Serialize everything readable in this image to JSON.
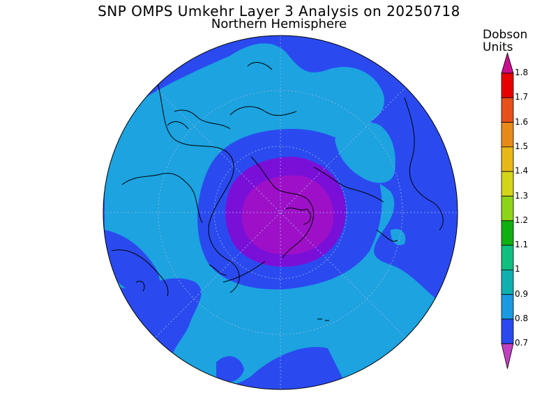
{
  "title": "SNP OMPS Umkehr Layer 3 Analysis on 20250718",
  "subtitle": "Northern Hemisphere",
  "legend": {
    "unit_line1": "Dobson",
    "unit_line2": "Units",
    "ticks": [
      "1.8",
      "1.7",
      "1.6",
      "1.5",
      "1.4",
      "1.3",
      "1.2",
      "1.1",
      "1",
      "0.9",
      "0.8",
      "0.7"
    ],
    "colors": [
      "#c8108c",
      "#e80000",
      "#e8501a",
      "#e88a1a",
      "#e8b81a",
      "#d4d41a",
      "#90d41a",
      "#10b010",
      "#10c080",
      "#10b0b0",
      "#1a9ae0",
      "#2a4af0",
      "#7000d0",
      "#c040c0"
    ]
  },
  "map": {
    "projection": "north-polar-stereographic",
    "colors": {
      "dark_blue": "#2a4af0",
      "light_blue": "#1ca3e0",
      "purple_outer": "#7a10d8",
      "purple_inner": "#9e10c8"
    }
  }
}
